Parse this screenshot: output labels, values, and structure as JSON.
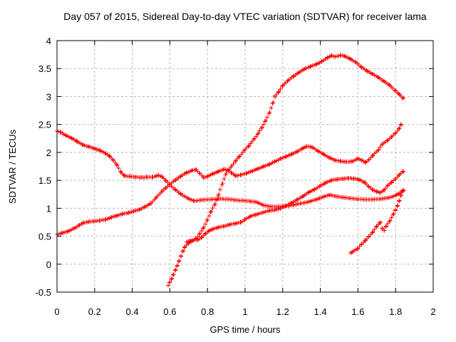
{
  "colors": {
    "background": "#ffffff",
    "grid": "#b9b9b9",
    "axis": "#000000",
    "text": "#000000",
    "marker": "#ff0000"
  },
  "chart_data": {
    "type": "scatter",
    "title": "Day 057 of 2015, Sidereal Day-to-day VTEC variation (SDTVAR) for receiver lama",
    "xlabel": "GPS time / hours",
    "ylabel": "SDTVAR / TECUs",
    "xlim": [
      0,
      2
    ],
    "ylim": [
      -0.5,
      4
    ],
    "grid": true,
    "legend": "none",
    "marker": "plus",
    "marker_color": "#ff0000",
    "xticks": {
      "values": [
        0,
        0.2,
        0.4,
        0.6,
        0.8,
        1,
        1.2,
        1.4,
        1.6,
        1.8,
        2
      ],
      "labels": [
        "0",
        "0.2",
        "0.4",
        "0.6",
        "0.8",
        "1",
        "1.2",
        "1.4",
        "1.6",
        "1.8",
        "2"
      ]
    },
    "yticks": {
      "values": [
        -0.5,
        0,
        0.5,
        1,
        1.5,
        2,
        2.5,
        3,
        3.5,
        4
      ],
      "labels": [
        "-0.5",
        "0",
        "0.5",
        "1",
        "1.5",
        "2",
        "2.5",
        "3",
        "3.5",
        "4"
      ]
    },
    "series": [
      {
        "name": "trace-1",
        "points": [
          [
            0.0,
            2.38
          ],
          [
            0.02,
            2.36
          ],
          [
            0.05,
            2.3
          ],
          [
            0.08,
            2.25
          ],
          [
            0.11,
            2.19
          ],
          [
            0.14,
            2.13
          ],
          [
            0.17,
            2.1
          ],
          [
            0.2,
            2.07
          ],
          [
            0.23,
            2.03
          ],
          [
            0.26,
            1.98
          ],
          [
            0.28,
            1.93
          ],
          [
            0.3,
            1.86
          ],
          [
            0.32,
            1.77
          ],
          [
            0.34,
            1.64
          ],
          [
            0.36,
            1.58
          ],
          [
            0.39,
            1.57
          ],
          [
            0.42,
            1.56
          ],
          [
            0.45,
            1.55
          ],
          [
            0.48,
            1.56
          ],
          [
            0.51,
            1.56
          ],
          [
            0.54,
            1.59
          ],
          [
            0.56,
            1.56
          ],
          [
            0.58,
            1.49
          ],
          [
            0.6,
            1.42
          ],
          [
            0.63,
            1.33
          ],
          [
            0.66,
            1.25
          ],
          [
            0.7,
            1.17
          ],
          [
            0.73,
            1.13
          ],
          [
            0.77,
            1.15
          ],
          [
            0.82,
            1.16
          ],
          [
            0.87,
            1.17
          ],
          [
            0.92,
            1.16
          ],
          [
            0.97,
            1.14
          ],
          [
            1.02,
            1.13
          ],
          [
            1.06,
            1.11
          ],
          [
            1.1,
            1.05
          ],
          [
            1.14,
            1.03
          ],
          [
            1.18,
            1.03
          ],
          [
            1.22,
            1.04
          ],
          [
            1.26,
            1.06
          ],
          [
            1.3,
            1.09
          ],
          [
            1.34,
            1.12
          ],
          [
            1.38,
            1.16
          ],
          [
            1.42,
            1.21
          ],
          [
            1.45,
            1.24
          ],
          [
            1.49,
            1.21
          ],
          [
            1.53,
            1.19
          ],
          [
            1.58,
            1.17
          ],
          [
            1.63,
            1.16
          ],
          [
            1.68,
            1.16
          ],
          [
            1.73,
            1.17
          ],
          [
            1.78,
            1.2
          ],
          [
            1.81,
            1.25
          ],
          [
            1.84,
            1.31
          ]
        ]
      },
      {
        "name": "trace-2",
        "points": [
          [
            0.0,
            0.53
          ],
          [
            0.03,
            0.56
          ],
          [
            0.06,
            0.59
          ],
          [
            0.09,
            0.64
          ],
          [
            0.12,
            0.7
          ],
          [
            0.14,
            0.74
          ],
          [
            0.17,
            0.76
          ],
          [
            0.2,
            0.77
          ],
          [
            0.23,
            0.78
          ],
          [
            0.26,
            0.8
          ],
          [
            0.29,
            0.84
          ],
          [
            0.32,
            0.87
          ],
          [
            0.35,
            0.9
          ],
          [
            0.38,
            0.92
          ],
          [
            0.41,
            0.95
          ],
          [
            0.44,
            0.98
          ],
          [
            0.47,
            1.03
          ],
          [
            0.5,
            1.09
          ],
          [
            0.53,
            1.2
          ],
          [
            0.56,
            1.31
          ],
          [
            0.58,
            1.37
          ],
          [
            0.6,
            1.43
          ],
          [
            0.63,
            1.51
          ],
          [
            0.66,
            1.58
          ],
          [
            0.69,
            1.64
          ],
          [
            0.72,
            1.68
          ],
          [
            0.74,
            1.69
          ],
          [
            0.76,
            1.62
          ],
          [
            0.78,
            1.55
          ],
          [
            0.8,
            1.57
          ],
          [
            0.83,
            1.62
          ],
          [
            0.86,
            1.66
          ],
          [
            0.89,
            1.7
          ],
          [
            0.91,
            1.68
          ],
          [
            0.93,
            1.63
          ],
          [
            0.95,
            1.58
          ],
          [
            0.98,
            1.6
          ],
          [
            1.01,
            1.63
          ],
          [
            1.04,
            1.67
          ],
          [
            1.07,
            1.71
          ],
          [
            1.1,
            1.75
          ],
          [
            1.13,
            1.79
          ],
          [
            1.16,
            1.84
          ],
          [
            1.19,
            1.89
          ],
          [
            1.22,
            1.93
          ],
          [
            1.25,
            1.97
          ],
          [
            1.28,
            2.02
          ],
          [
            1.31,
            2.08
          ],
          [
            1.33,
            2.11
          ],
          [
            1.36,
            2.09
          ],
          [
            1.39,
            2.02
          ],
          [
            1.42,
            1.96
          ],
          [
            1.45,
            1.9
          ],
          [
            1.48,
            1.86
          ],
          [
            1.51,
            1.84
          ],
          [
            1.54,
            1.83
          ],
          [
            1.57,
            1.84
          ],
          [
            1.6,
            1.89
          ],
          [
            1.62,
            1.86
          ],
          [
            1.64,
            1.82
          ],
          [
            1.66,
            1.87
          ],
          [
            1.68,
            1.95
          ],
          [
            1.71,
            2.05
          ],
          [
            1.73,
            2.15
          ],
          [
            1.76,
            2.22
          ],
          [
            1.78,
            2.28
          ],
          [
            1.8,
            2.35
          ],
          [
            1.82,
            2.43
          ],
          [
            1.83,
            2.5
          ]
        ]
      },
      {
        "name": "trace-3",
        "points": [
          [
            0.59,
            -0.38
          ],
          [
            0.6,
            -0.32
          ],
          [
            0.61,
            -0.26
          ],
          [
            0.62,
            -0.18
          ],
          [
            0.63,
            -0.1
          ],
          [
            0.64,
            -0.02
          ],
          [
            0.65,
            0.06
          ],
          [
            0.66,
            0.15
          ],
          [
            0.67,
            0.24
          ],
          [
            0.68,
            0.31
          ],
          [
            0.7,
            0.38
          ],
          [
            0.72,
            0.42
          ],
          [
            0.74,
            0.46
          ],
          [
            0.76,
            0.55
          ],
          [
            0.78,
            0.66
          ],
          [
            0.8,
            0.8
          ],
          [
            0.82,
            0.95
          ],
          [
            0.84,
            1.08
          ],
          [
            0.86,
            1.25
          ],
          [
            0.88,
            1.45
          ],
          [
            0.9,
            1.63
          ],
          [
            0.93,
            1.76
          ],
          [
            0.95,
            1.85
          ],
          [
            0.97,
            1.93
          ],
          [
            1.0,
            2.05
          ],
          [
            1.02,
            2.12
          ],
          [
            1.05,
            2.25
          ],
          [
            1.07,
            2.34
          ],
          [
            1.09,
            2.45
          ],
          [
            1.11,
            2.57
          ],
          [
            1.13,
            2.72
          ],
          [
            1.15,
            2.9
          ],
          [
            1.16,
            3.01
          ],
          [
            1.18,
            3.09
          ],
          [
            1.2,
            3.2
          ],
          [
            1.23,
            3.29
          ],
          [
            1.26,
            3.37
          ],
          [
            1.29,
            3.44
          ],
          [
            1.32,
            3.5
          ],
          [
            1.35,
            3.54
          ],
          [
            1.38,
            3.58
          ],
          [
            1.41,
            3.63
          ],
          [
            1.44,
            3.7
          ],
          [
            1.46,
            3.73
          ],
          [
            1.48,
            3.71
          ],
          [
            1.51,
            3.74
          ],
          [
            1.53,
            3.72
          ],
          [
            1.56,
            3.67
          ],
          [
            1.59,
            3.61
          ],
          [
            1.62,
            3.52
          ],
          [
            1.65,
            3.45
          ],
          [
            1.68,
            3.4
          ],
          [
            1.71,
            3.34
          ],
          [
            1.74,
            3.27
          ],
          [
            1.77,
            3.2
          ],
          [
            1.8,
            3.1
          ],
          [
            1.82,
            3.04
          ],
          [
            1.84,
            2.97
          ]
        ]
      },
      {
        "name": "trace-4",
        "points": [
          [
            0.69,
            0.4
          ],
          [
            0.71,
            0.42
          ],
          [
            0.73,
            0.43
          ],
          [
            0.75,
            0.44
          ],
          [
            0.77,
            0.48
          ],
          [
            0.79,
            0.55
          ],
          [
            0.81,
            0.6
          ],
          [
            0.83,
            0.63
          ],
          [
            0.86,
            0.66
          ],
          [
            0.89,
            0.68
          ],
          [
            0.92,
            0.71
          ],
          [
            0.95,
            0.73
          ],
          [
            0.98,
            0.75
          ],
          [
            1.0,
            0.8
          ],
          [
            1.03,
            0.86
          ],
          [
            1.06,
            0.89
          ],
          [
            1.1,
            0.93
          ],
          [
            1.13,
            0.96
          ],
          [
            1.16,
            0.97
          ],
          [
            1.19,
            1.0
          ],
          [
            1.22,
            1.05
          ],
          [
            1.25,
            1.1
          ],
          [
            1.28,
            1.16
          ],
          [
            1.31,
            1.22
          ],
          [
            1.34,
            1.29
          ],
          [
            1.37,
            1.34
          ],
          [
            1.4,
            1.4
          ],
          [
            1.43,
            1.46
          ],
          [
            1.46,
            1.5
          ],
          [
            1.49,
            1.52
          ],
          [
            1.52,
            1.53
          ],
          [
            1.55,
            1.54
          ],
          [
            1.58,
            1.53
          ],
          [
            1.61,
            1.51
          ],
          [
            1.64,
            1.45
          ],
          [
            1.66,
            1.38
          ],
          [
            1.68,
            1.33
          ],
          [
            1.7,
            1.3
          ],
          [
            1.72,
            1.28
          ],
          [
            1.74,
            1.33
          ],
          [
            1.76,
            1.41
          ],
          [
            1.78,
            1.47
          ],
          [
            1.8,
            1.53
          ],
          [
            1.82,
            1.6
          ],
          [
            1.84,
            1.66
          ]
        ]
      },
      {
        "name": "trace-5",
        "points": [
          [
            1.56,
            0.2
          ],
          [
            1.57,
            0.22
          ],
          [
            1.58,
            0.24
          ],
          [
            1.6,
            0.28
          ],
          [
            1.62,
            0.36
          ],
          [
            1.64,
            0.43
          ],
          [
            1.66,
            0.5
          ],
          [
            1.68,
            0.58
          ],
          [
            1.7,
            0.68
          ],
          [
            1.72,
            0.75
          ],
          [
            1.73,
            0.63
          ],
          [
            1.74,
            0.6
          ],
          [
            1.75,
            0.68
          ],
          [
            1.77,
            0.78
          ],
          [
            1.79,
            0.9
          ],
          [
            1.8,
            0.97
          ],
          [
            1.81,
            1.05
          ],
          [
            1.82,
            1.14
          ],
          [
            1.83,
            1.24
          ],
          [
            1.84,
            1.33
          ]
        ]
      }
    ]
  }
}
